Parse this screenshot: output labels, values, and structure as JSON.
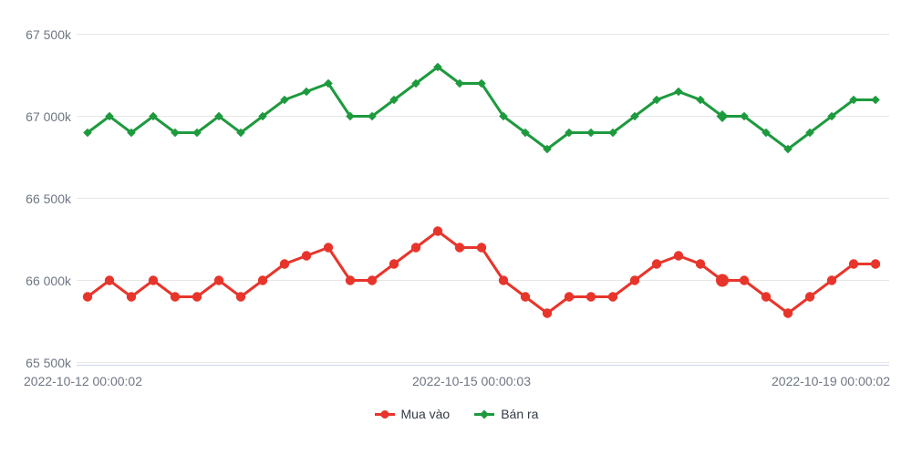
{
  "chart_data": {
    "type": "line",
    "title": "",
    "x_tick_labels": [
      "2022-10-12 00:00:02",
      "2022-10-15 00:00:03",
      "2022-10-19 00:00:02"
    ],
    "y_tick_labels": [
      "67 500k",
      "67 000k",
      "66 500k",
      "66 000k",
      "65 500k"
    ],
    "y_tick_values": [
      67500,
      67000,
      66500,
      66000,
      65500
    ],
    "ylim": [
      65500,
      67500
    ],
    "grid": true,
    "legend_position": "bottom-center",
    "highlight_point_index": 29,
    "series": [
      {
        "name": "Mua vào",
        "color": "#e8352b",
        "marker": "circle",
        "values": [
          65900,
          66000,
          65900,
          66000,
          65900,
          65900,
          66000,
          65900,
          66000,
          66100,
          66150,
          66200,
          66000,
          66000,
          66100,
          66200,
          66300,
          66200,
          66200,
          66000,
          65900,
          65800,
          65900,
          65900,
          65900,
          66000,
          66100,
          66150,
          66100,
          66000,
          66000,
          65900,
          65800,
          65900,
          66000,
          66100,
          66100
        ]
      },
      {
        "name": "Bán ra",
        "color": "#1e9a3e",
        "marker": "diamond",
        "values": [
          66900,
          67000,
          66900,
          67000,
          66900,
          66900,
          67000,
          66900,
          67000,
          67100,
          67150,
          67200,
          67000,
          67000,
          67100,
          67200,
          67300,
          67200,
          67200,
          67000,
          66900,
          66800,
          66900,
          66900,
          66900,
          67000,
          67100,
          67150,
          67100,
          67000,
          67000,
          66900,
          66800,
          66900,
          67000,
          67100,
          67100
        ]
      }
    ],
    "colors": {
      "gridline": "#e6e6e6",
      "axis_line": "#ccd6eb",
      "axis_label": "#6e7683",
      "legend_text": "#333a45"
    }
  }
}
